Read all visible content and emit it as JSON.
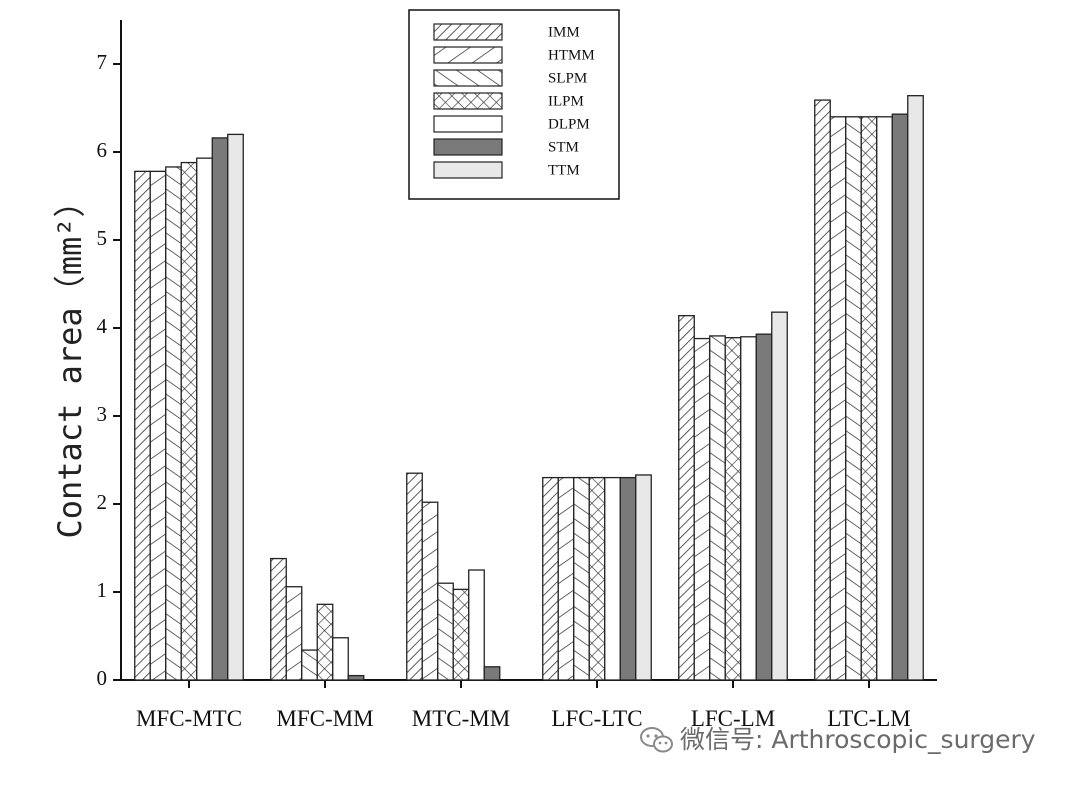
{
  "chart_data": {
    "type": "bar",
    "categories": [
      "MFC-MTC",
      "MFC-MM",
      "MTC-MM",
      "LFC-LTC",
      "LFC-LM",
      "LTC-LM"
    ],
    "series": [
      {
        "name": "IMM",
        "pattern": "fwd-diag",
        "values": [
          5.78,
          1.38,
          2.35,
          2.3,
          4.14,
          6.59
        ]
      },
      {
        "name": "HTMM",
        "pattern": "fwd-sparse",
        "values": [
          5.78,
          1.06,
          2.02,
          2.3,
          3.88,
          6.4
        ]
      },
      {
        "name": "SLPM",
        "pattern": "back-diag",
        "values": [
          5.83,
          0.34,
          1.1,
          2.3,
          3.91,
          6.4
        ]
      },
      {
        "name": "ILPM",
        "pattern": "cross",
        "values": [
          5.88,
          0.86,
          1.03,
          2.3,
          3.89,
          6.4
        ]
      },
      {
        "name": "DLPM",
        "pattern": "none",
        "values": [
          5.93,
          0.48,
          1.25,
          2.3,
          3.9,
          6.4
        ]
      },
      {
        "name": "STM",
        "pattern": "dark",
        "values": [
          6.16,
          0.05,
          0.15,
          2.3,
          3.93,
          6.43
        ]
      },
      {
        "name": "TTM",
        "pattern": "light",
        "values": [
          6.2,
          0.0,
          0.0,
          2.33,
          4.18,
          6.64
        ]
      }
    ],
    "ylabel": "Contact area（mm²）",
    "ylim": [
      0,
      7.5
    ],
    "yticks": [
      0,
      1,
      2,
      3,
      4,
      5,
      6,
      7
    ],
    "grid": false,
    "legend_position": "top-center",
    "colors": {
      "stroke": "#222222",
      "dark_fill": "#7a7a7a",
      "light_fill": "#e8e8e8"
    }
  },
  "watermark": {
    "icon": "wechat-icon",
    "text": "微信号: Arthroscopic_surgery"
  }
}
